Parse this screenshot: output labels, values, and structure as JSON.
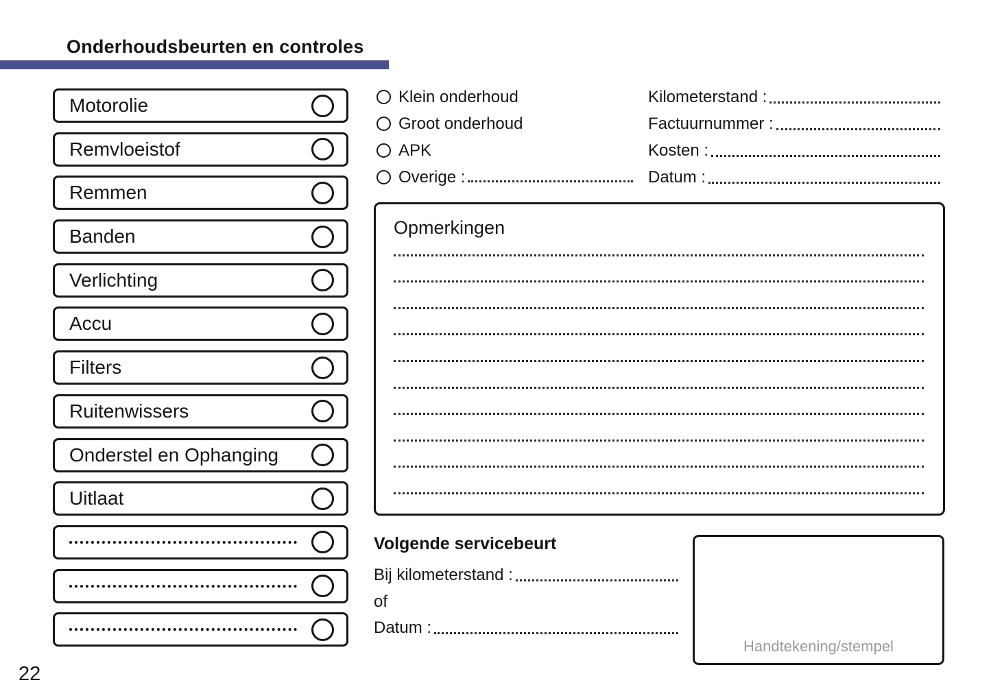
{
  "header": {
    "title": "Onderhoudsbeurten en controles"
  },
  "colors": {
    "accent_bar": "#4a4f8e",
    "ink": "#161616",
    "muted_text": "#9b9b9b"
  },
  "checklist": {
    "items": [
      {
        "label": "Motorolie",
        "blank": false
      },
      {
        "label": "Remvloeistof",
        "blank": false
      },
      {
        "label": "Remmen",
        "blank": false
      },
      {
        "label": "Banden",
        "blank": false
      },
      {
        "label": "Verlichting",
        "blank": false
      },
      {
        "label": "Accu",
        "blank": false
      },
      {
        "label": "Filters",
        "blank": false
      },
      {
        "label": "Ruitenwissers",
        "blank": false
      },
      {
        "label": "Onderstel en Ophanging",
        "blank": false
      },
      {
        "label": "Uitlaat",
        "blank": false
      },
      {
        "label": "",
        "blank": true
      },
      {
        "label": "",
        "blank": true
      },
      {
        "label": "",
        "blank": true
      }
    ]
  },
  "service_type": {
    "options": [
      {
        "label": "Klein onderhoud",
        "line": false
      },
      {
        "label": "Groot onderhoud",
        "line": false
      },
      {
        "label": "APK",
        "line": false
      },
      {
        "label": "Overige :",
        "line": true
      }
    ]
  },
  "record_fields": {
    "fields": [
      {
        "label": "Kilometerstand :"
      },
      {
        "label": "Factuurnummer :"
      },
      {
        "label": "Kosten :"
      },
      {
        "label": "Datum :"
      }
    ]
  },
  "remarks": {
    "title": "Opmerkingen",
    "line_count": 10
  },
  "next_service": {
    "title": "Volgende servicebeurt",
    "rows": [
      {
        "label": "Bij kilometerstand :",
        "line": true
      },
      {
        "label": "of",
        "line": false
      },
      {
        "label": "Datum :",
        "line": true
      }
    ]
  },
  "signature": {
    "label": "Handtekening/stempel"
  },
  "page": {
    "number": "22"
  }
}
